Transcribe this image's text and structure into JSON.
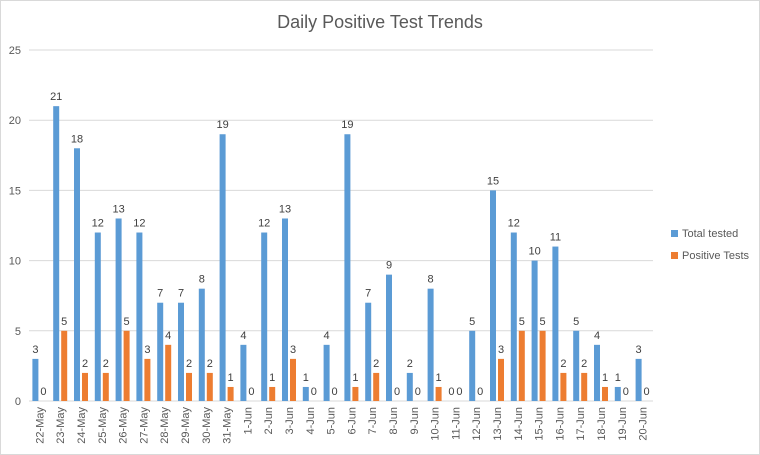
{
  "chart_data": {
    "type": "bar",
    "title": "Daily Positive Test Trends",
    "xlabel": "",
    "ylabel": "",
    "ylim": [
      0,
      25
    ],
    "yticks": [
      0,
      5,
      10,
      15,
      20,
      25
    ],
    "grid": true,
    "legend_position": "right",
    "categories": [
      "22-May",
      "23-May",
      "24-May",
      "25-May",
      "26-May",
      "27-May",
      "28-May",
      "29-May",
      "30-May",
      "31-May",
      "1-Jun",
      "2-Jun",
      "3-Jun",
      "4-Jun",
      "5-Jun",
      "6-Jun",
      "7-Jun",
      "8-Jun",
      "9-Jun",
      "10-Jun",
      "11-Jun",
      "12-Jun",
      "13-Jun",
      "14-Jun",
      "15-Jun",
      "16-Jun",
      "17-Jun",
      "18-Jun",
      "19-Jun",
      "20-Jun"
    ],
    "series": [
      {
        "name": "Total tested",
        "color": "#5b9bd5",
        "values": [
          3,
          21,
          18,
          12,
          13,
          12,
          7,
          7,
          8,
          19,
          4,
          12,
          13,
          1,
          4,
          19,
          7,
          9,
          2,
          8,
          0,
          5,
          15,
          12,
          10,
          11,
          5,
          4,
          1,
          3
        ]
      },
      {
        "name": "Positive Tests",
        "color": "#ed7d31",
        "values": [
          0,
          5,
          2,
          2,
          5,
          3,
          4,
          2,
          2,
          1,
          0,
          1,
          3,
          0,
          0,
          1,
          2,
          0,
          0,
          1,
          0,
          0,
          3,
          5,
          5,
          2,
          2,
          1,
          0,
          0
        ]
      }
    ]
  }
}
